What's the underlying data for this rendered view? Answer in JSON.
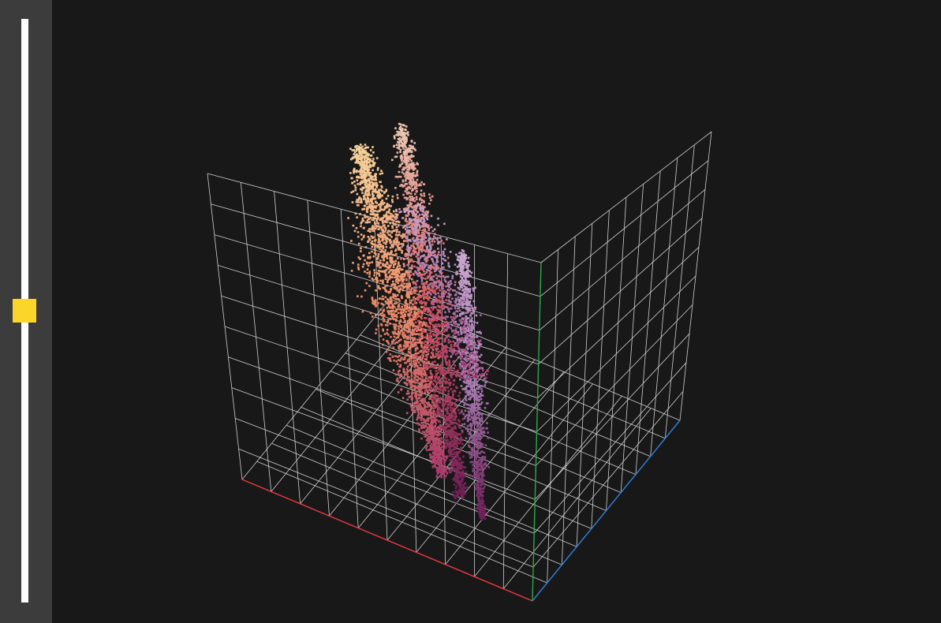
{
  "sidebar": {
    "slider": {
      "value_fraction": 0.5
    }
  },
  "view": {
    "background_color": "#181818",
    "grid_color": "#cfcfcf",
    "grid_divisions": 10,
    "axis_colors": {
      "x": "#e8383d",
      "y": "#2aa64a",
      "z": "#2f7fd9"
    },
    "point_colors": [
      "#f7d49c",
      "#eec9b3",
      "#ef8a66",
      "#d24e5f",
      "#a8396b",
      "#6e1f57",
      "#a779b2",
      "#c9a7cf"
    ]
  }
}
